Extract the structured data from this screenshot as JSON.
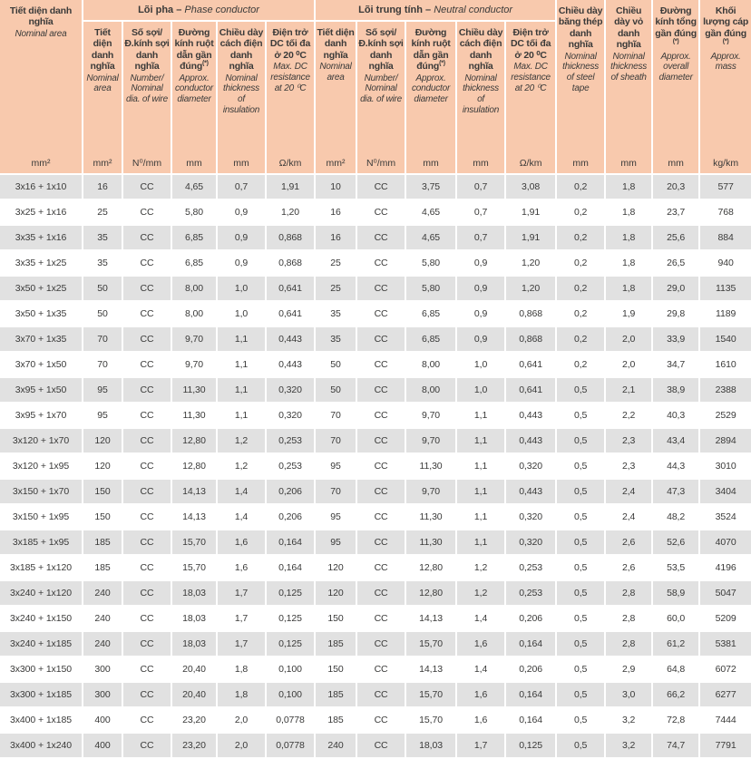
{
  "colors": {
    "header_bg": "#f8c9ad",
    "row_alt_bg": "#e1e1e1",
    "row_bg": "#ffffff",
    "text": "#3a3a39",
    "separator": "#ffffff"
  },
  "header": {
    "first": {
      "vi": "Tiết diện danh nghĩa",
      "en": "Nominal area",
      "unit": "mm²"
    },
    "phase_group": {
      "vi": "Lõi pha –",
      "en": "Phase conductor"
    },
    "neutral_group": {
      "vi": "Lõi trung tính –",
      "en": "Neutral conductor"
    },
    "sub": [
      {
        "vi": "Tiết diện danh nghĩa",
        "en": "Nominal area",
        "unit": "mm²"
      },
      {
        "vi": "Số sợi/ Đ.kính sợi danh nghĩa",
        "en": "Number/ Nominal dia. of wire",
        "unit": "N⁰/mm"
      },
      {
        "vi": "Đường kính ruột dẫn gần đúng",
        "note": "(*)",
        "en": "Approx. conductor diameter",
        "unit": "mm"
      },
      {
        "vi": "Chiều dày cách điện danh nghĩa",
        "en": "Nominal thickness of insulation",
        "unit": "mm"
      },
      {
        "vi": "Điện trở DC tối đa ở 20 ⁰C",
        "en": "Max. DC resistance at 20 ⁰C",
        "unit": "Ω/km"
      }
    ],
    "right": [
      {
        "vi": "Chiều dày băng thép danh nghĩa",
        "en": "Nominal thickness of steel tape",
        "unit": "mm"
      },
      {
        "vi": "Chiều dày vỏ danh nghĩa",
        "en": "Nominal thickness of sheath",
        "unit": "mm"
      },
      {
        "vi": "Đường kính tổng gần đúng",
        "note": "(*)",
        "en": "Approx. overall diameter",
        "unit": "mm"
      },
      {
        "vi": "Khối lượng cáp gần đúng",
        "note": "(*)",
        "en": "Approx. mass",
        "unit": "kg/km"
      }
    ]
  },
  "rows": [
    [
      "3x16 + 1x10",
      "16",
      "CC",
      "4,65",
      "0,7",
      "1,91",
      "10",
      "CC",
      "3,75",
      "0,7",
      "3,08",
      "0,2",
      "1,8",
      "20,3",
      "577"
    ],
    [
      "3x25 + 1x16",
      "25",
      "CC",
      "5,80",
      "0,9",
      "1,20",
      "16",
      "CC",
      "4,65",
      "0,7",
      "1,91",
      "0,2",
      "1,8",
      "23,7",
      "768"
    ],
    [
      "3x35 + 1x16",
      "35",
      "CC",
      "6,85",
      "0,9",
      "0,868",
      "16",
      "CC",
      "4,65",
      "0,7",
      "1,91",
      "0,2",
      "1,8",
      "25,6",
      "884"
    ],
    [
      "3x35 + 1x25",
      "35",
      "CC",
      "6,85",
      "0,9",
      "0,868",
      "25",
      "CC",
      "5,80",
      "0,9",
      "1,20",
      "0,2",
      "1,8",
      "26,5",
      "940"
    ],
    [
      "3x50 + 1x25",
      "50",
      "CC",
      "8,00",
      "1,0",
      "0,641",
      "25",
      "CC",
      "5,80",
      "0,9",
      "1,20",
      "0,2",
      "1,8",
      "29,0",
      "1135"
    ],
    [
      "3x50 + 1x35",
      "50",
      "CC",
      "8,00",
      "1,0",
      "0,641",
      "35",
      "CC",
      "6,85",
      "0,9",
      "0,868",
      "0,2",
      "1,9",
      "29,8",
      "1189"
    ],
    [
      "3x70 + 1x35",
      "70",
      "CC",
      "9,70",
      "1,1",
      "0,443",
      "35",
      "CC",
      "6,85",
      "0,9",
      "0,868",
      "0,2",
      "2,0",
      "33,9",
      "1540"
    ],
    [
      "3x70 + 1x50",
      "70",
      "CC",
      "9,70",
      "1,1",
      "0,443",
      "50",
      "CC",
      "8,00",
      "1,0",
      "0,641",
      "0,2",
      "2,0",
      "34,7",
      "1610"
    ],
    [
      "3x95 + 1x50",
      "95",
      "CC",
      "11,30",
      "1,1",
      "0,320",
      "50",
      "CC",
      "8,00",
      "1,0",
      "0,641",
      "0,5",
      "2,1",
      "38,9",
      "2388"
    ],
    [
      "3x95 + 1x70",
      "95",
      "CC",
      "11,30",
      "1,1",
      "0,320",
      "70",
      "CC",
      "9,70",
      "1,1",
      "0,443",
      "0,5",
      "2,2",
      "40,3",
      "2529"
    ],
    [
      "3x120 + 1x70",
      "120",
      "CC",
      "12,80",
      "1,2",
      "0,253",
      "70",
      "CC",
      "9,70",
      "1,1",
      "0,443",
      "0,5",
      "2,3",
      "43,4",
      "2894"
    ],
    [
      "3x120 + 1x95",
      "120",
      "CC",
      "12,80",
      "1,2",
      "0,253",
      "95",
      "CC",
      "11,30",
      "1,1",
      "0,320",
      "0,5",
      "2,3",
      "44,3",
      "3010"
    ],
    [
      "3x150 + 1x70",
      "150",
      "CC",
      "14,13",
      "1,4",
      "0,206",
      "70",
      "CC",
      "9,70",
      "1,1",
      "0,443",
      "0,5",
      "2,4",
      "47,3",
      "3404"
    ],
    [
      "3x150 + 1x95",
      "150",
      "CC",
      "14,13",
      "1,4",
      "0,206",
      "95",
      "CC",
      "11,30",
      "1,1",
      "0,320",
      "0,5",
      "2,4",
      "48,2",
      "3524"
    ],
    [
      "3x185 + 1x95",
      "185",
      "CC",
      "15,70",
      "1,6",
      "0,164",
      "95",
      "CC",
      "11,30",
      "1,1",
      "0,320",
      "0,5",
      "2,6",
      "52,6",
      "4070"
    ],
    [
      "3x185 + 1x120",
      "185",
      "CC",
      "15,70",
      "1,6",
      "0,164",
      "120",
      "CC",
      "12,80",
      "1,2",
      "0,253",
      "0,5",
      "2,6",
      "53,5",
      "4196"
    ],
    [
      "3x240 + 1x120",
      "240",
      "CC",
      "18,03",
      "1,7",
      "0,125",
      "120",
      "CC",
      "12,80",
      "1,2",
      "0,253",
      "0,5",
      "2,8",
      "58,9",
      "5047"
    ],
    [
      "3x240 + 1x150",
      "240",
      "CC",
      "18,03",
      "1,7",
      "0,125",
      "150",
      "CC",
      "14,13",
      "1,4",
      "0,206",
      "0,5",
      "2,8",
      "60,0",
      "5209"
    ],
    [
      "3x240 + 1x185",
      "240",
      "CC",
      "18,03",
      "1,7",
      "0,125",
      "185",
      "CC",
      "15,70",
      "1,6",
      "0,164",
      "0,5",
      "2,8",
      "61,2",
      "5381"
    ],
    [
      "3x300 + 1x150",
      "300",
      "CC",
      "20,40",
      "1,8",
      "0,100",
      "150",
      "CC",
      "14,13",
      "1,4",
      "0,206",
      "0,5",
      "2,9",
      "64,8",
      "6072"
    ],
    [
      "3x300 + 1x185",
      "300",
      "CC",
      "20,40",
      "1,8",
      "0,100",
      "185",
      "CC",
      "15,70",
      "1,6",
      "0,164",
      "0,5",
      "3,0",
      "66,2",
      "6277"
    ],
    [
      "3x400 + 1x185",
      "400",
      "CC",
      "23,20",
      "2,0",
      "0,0778",
      "185",
      "CC",
      "15,70",
      "1,6",
      "0,164",
      "0,5",
      "3,2",
      "72,8",
      "7444"
    ],
    [
      "3x400 + 1x240",
      "400",
      "CC",
      "23,20",
      "2,0",
      "0,0778",
      "240",
      "CC",
      "18,03",
      "1,7",
      "0,125",
      "0,5",
      "3,2",
      "74,7",
      "7791"
    ]
  ]
}
